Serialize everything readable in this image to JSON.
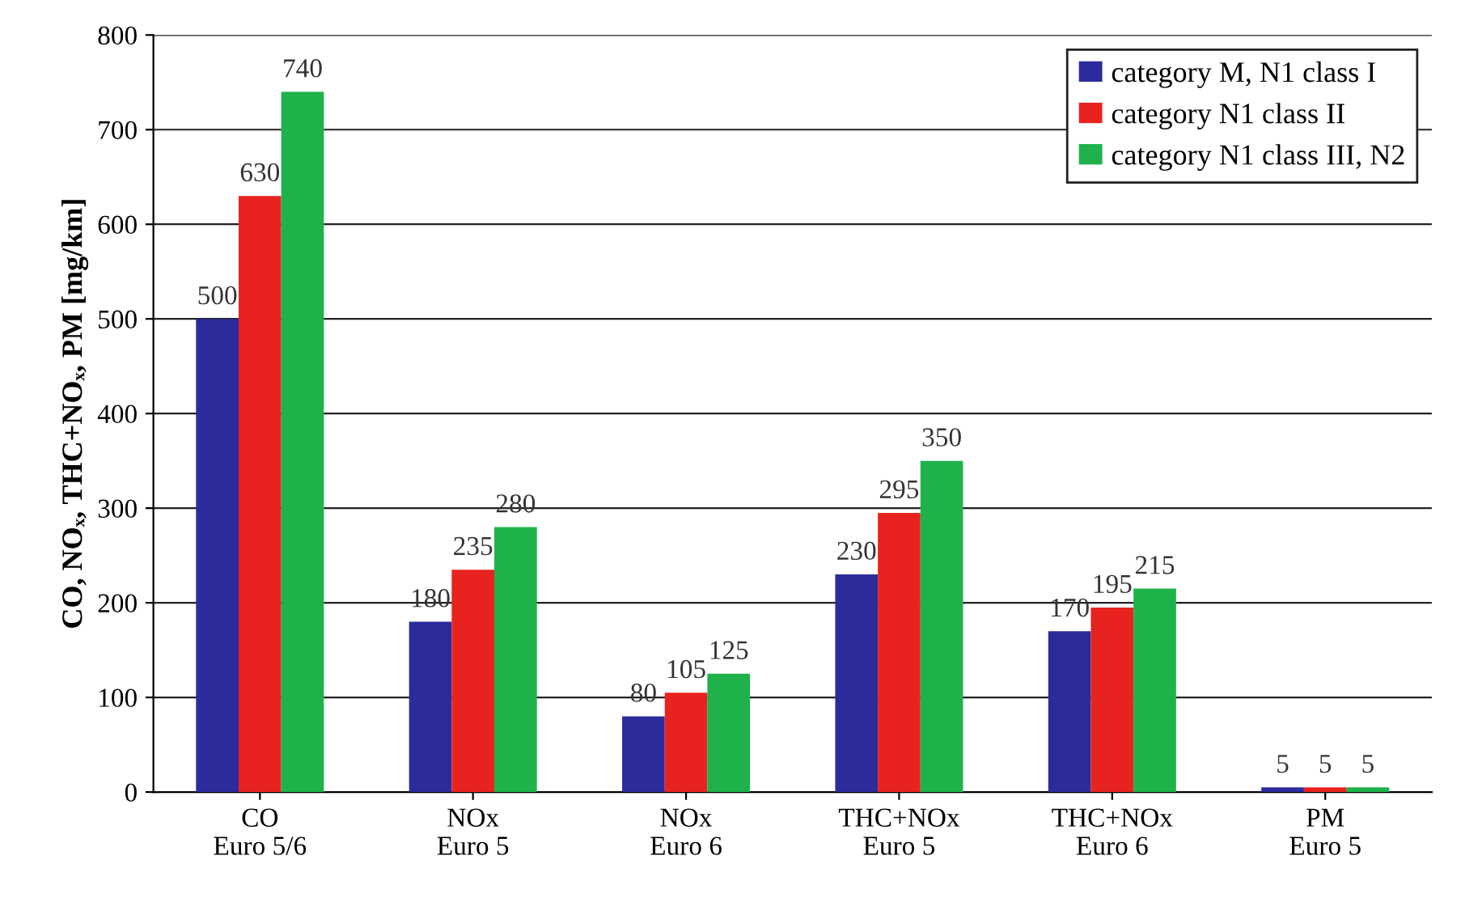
{
  "chart_data": {
    "type": "bar",
    "ylabel": "CO, NOₓ, THC+NOₓ, PM [mg/km]",
    "categories": [
      "CO\nEuro 5/6",
      "NOx\nEuro 5",
      "NOx\nEuro 6",
      "THC+NOx\nEuro 5",
      "THC+NOx\nEuro 6",
      "PM\nEuro 5"
    ],
    "series": [
      {
        "name": "category M, N1 class I",
        "color": "#2b2b9c",
        "values": [
          500,
          180,
          80,
          230,
          170,
          5
        ]
      },
      {
        "name": "category N1 class II",
        "color": "#e8231f",
        "values": [
          630,
          235,
          105,
          295,
          195,
          5
        ]
      },
      {
        "name": "category N1 class III, N2",
        "color": "#1fb24a",
        "values": [
          740,
          280,
          125,
          350,
          215,
          5
        ]
      }
    ],
    "ylim": [
      0,
      800
    ],
    "yticks": [
      0,
      100,
      200,
      300,
      400,
      500,
      600,
      700,
      800
    ],
    "grid": "y",
    "legend": "top right",
    "data_labels": true
  }
}
